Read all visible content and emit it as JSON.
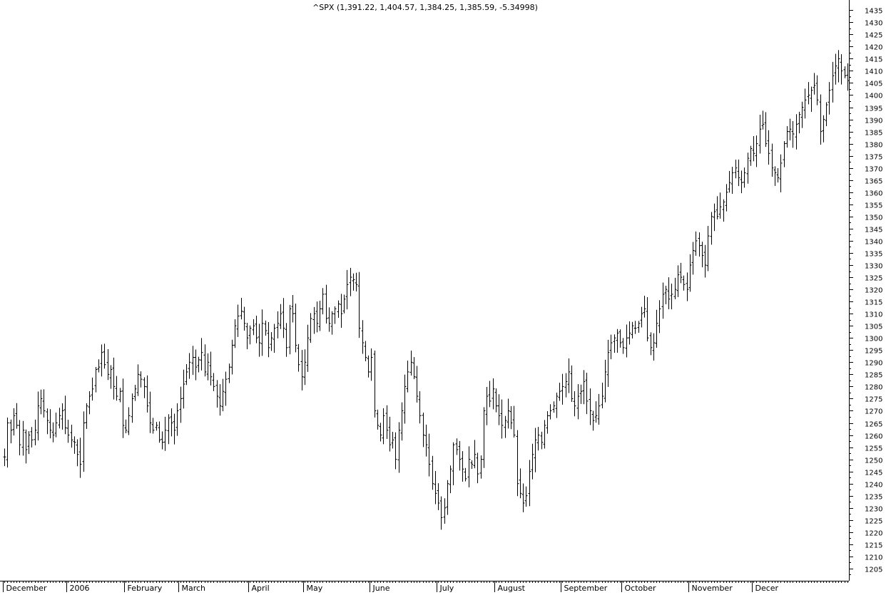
{
  "chart_data": {
    "type": "ohlc",
    "title": "^SPX (1,391.22, 1,404.57, 1,384.25, 1,385.59, -5.34998)",
    "ylim": [
      1200,
      1438
    ],
    "y_ticks": [
      1205,
      1210,
      1215,
      1220,
      1225,
      1230,
      1235,
      1240,
      1245,
      1250,
      1255,
      1260,
      1265,
      1270,
      1275,
      1280,
      1285,
      1290,
      1295,
      1300,
      1305,
      1310,
      1315,
      1320,
      1325,
      1330,
      1335,
      1340,
      1345,
      1350,
      1355,
      1360,
      1365,
      1370,
      1375,
      1380,
      1385,
      1390,
      1395,
      1400,
      1405,
      1410,
      1415,
      1420,
      1425,
      1430,
      1435
    ],
    "x_axis": {
      "months": [
        {
          "label": "December",
          "index": 0
        },
        {
          "label": "2006",
          "index": 21
        },
        {
          "label": "February",
          "index": 40
        },
        {
          "label": "March",
          "index": 58
        },
        {
          "label": "April",
          "index": 81
        },
        {
          "label": "May",
          "index": 99
        },
        {
          "label": "June",
          "index": 121
        },
        {
          "label": "July",
          "index": 143
        },
        {
          "label": "August",
          "index": 162
        },
        {
          "label": "September",
          "index": 184
        },
        {
          "label": "October",
          "index": 204
        },
        {
          "label": "November",
          "index": 226
        },
        {
          "label": "Decer",
          "index": 247
        }
      ]
    },
    "closes": [
      1251,
      1265,
      1262,
      1268,
      1264,
      1256,
      1262,
      1254,
      1260,
      1258,
      1262,
      1272,
      1275,
      1270,
      1266,
      1262,
      1260,
      1265,
      1268,
      1270,
      1263,
      1260,
      1258,
      1257,
      1252,
      1248,
      1265,
      1272,
      1276,
      1279,
      1287,
      1288,
      1294,
      1289,
      1285,
      1287,
      1280,
      1276,
      1278,
      1264,
      1262,
      1268,
      1275,
      1279,
      1285,
      1283,
      1280,
      1272,
      1265,
      1262,
      1264,
      1258,
      1257,
      1262,
      1267,
      1265,
      1262,
      1270,
      1275,
      1281,
      1286,
      1290,
      1292,
      1288,
      1291,
      1294,
      1286,
      1290,
      1284,
      1280,
      1276,
      1272,
      1278,
      1283,
      1288,
      1297,
      1305,
      1309,
      1311,
      1306,
      1300,
      1304,
      1305,
      1300,
      1298,
      1306,
      1303,
      1296,
      1300,
      1304,
      1306,
      1310,
      1304,
      1296,
      1312,
      1310,
      1297,
      1289,
      1284,
      1290,
      1300,
      1308,
      1310,
      1306,
      1312,
      1318,
      1308,
      1306,
      1310,
      1312,
      1314,
      1310,
      1316,
      1322,
      1325,
      1324,
      1322,
      1304,
      1298,
      1292,
      1286,
      1292,
      1270,
      1264,
      1260,
      1268,
      1262,
      1256,
      1258,
      1250,
      1262,
      1270,
      1280,
      1286,
      1290,
      1284,
      1276,
      1268,
      1260,
      1256,
      1248,
      1240,
      1236,
      1232,
      1226,
      1230,
      1240,
      1246,
      1256,
      1254,
      1250,
      1246,
      1242,
      1250,
      1248,
      1252,
      1244,
      1250,
      1270,
      1276,
      1274,
      1279,
      1272,
      1268,
      1264,
      1266,
      1270,
      1265,
      1260,
      1240,
      1236,
      1232,
      1235,
      1245,
      1252,
      1258,
      1260,
      1257,
      1264,
      1268,
      1270,
      1272,
      1276,
      1278,
      1280,
      1282,
      1286,
      1275,
      1272,
      1276,
      1278,
      1282,
      1274,
      1270,
      1266,
      1268,
      1272,
      1276,
      1286,
      1294,
      1298,
      1300,
      1302,
      1298,
      1296,
      1300,
      1302,
      1305,
      1304,
      1306,
      1310,
      1312,
      1300,
      1296,
      1298,
      1306,
      1312,
      1318,
      1320,
      1316,
      1318,
      1320,
      1326,
      1325,
      1322,
      1320,
      1330,
      1336,
      1340,
      1338,
      1334,
      1330,
      1342,
      1350,
      1352,
      1350,
      1354,
      1356,
      1360,
      1364,
      1368,
      1370,
      1366,
      1364,
      1368,
      1374,
      1378,
      1376,
      1380,
      1386,
      1388,
      1380,
      1376,
      1370,
      1368,
      1366,
      1372,
      1380,
      1385,
      1386,
      1384,
      1388,
      1392,
      1395,
      1398,
      1400,
      1402,
      1404,
      1398,
      1385,
      1390,
      1396,
      1402,
      1408,
      1412,
      1415,
      1410,
      1408,
      1406
    ]
  }
}
